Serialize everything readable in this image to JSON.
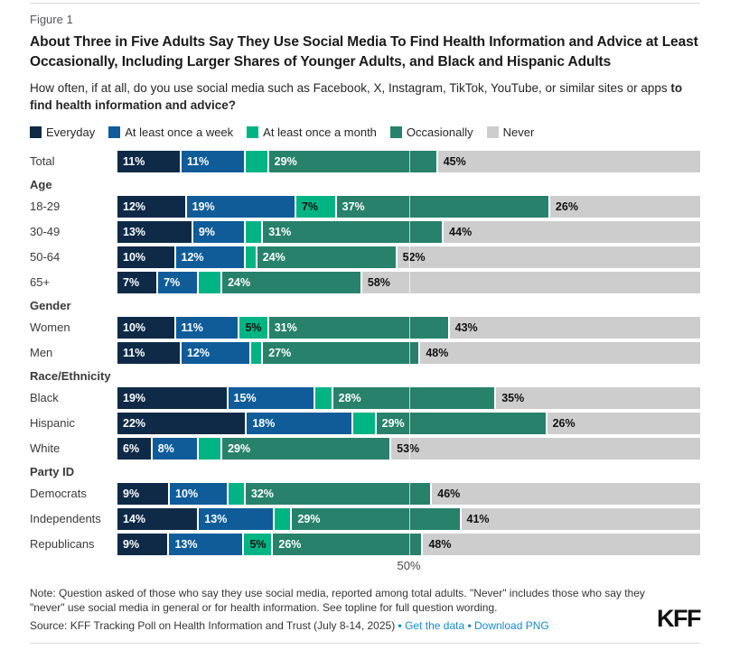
{
  "figure_label": "Figure 1",
  "title": "About Three in Five Adults Say They Use Social Media To Find Health Information and Advice at Least Occasionally, Including Larger Shares of Younger Adults, and Black and Hispanic Adults",
  "subtitle_regular": "How often, if at all, do you use social media such as Facebook, X, Instagram, TikTok, YouTube, or similar sites or apps ",
  "subtitle_bold": "to find health information and advice?",
  "legend": [
    {
      "label": "Everyday",
      "color": "#0e2a47"
    },
    {
      "label": "At least once a week",
      "color": "#0f5c99"
    },
    {
      "label": "At least once a month",
      "color": "#00b484"
    },
    {
      "label": "Occasionally",
      "color": "#27816b"
    },
    {
      "label": "Never",
      "color": "#cdcdcd"
    }
  ],
  "chart_data": {
    "type": "bar",
    "orientation": "horizontal-stacked",
    "series": [
      "Everyday",
      "At least once a week",
      "At least once a month",
      "Occasionally",
      "Never"
    ],
    "value_suffix": "%",
    "label_min_value": 5,
    "label_colors": [
      "#ffffff",
      "#ffffff",
      "#111111",
      "#ffffff",
      "#111111"
    ],
    "axis": {
      "range": [
        0,
        100
      ],
      "tick_value": 50,
      "tick_label": "50%",
      "gridline_at": 50
    },
    "rows": [
      {
        "type": "bar",
        "label": "Total",
        "values": [
          11,
          11,
          4,
          29,
          45
        ]
      },
      {
        "type": "header",
        "label": "Age"
      },
      {
        "type": "bar",
        "label": "18-29",
        "values": [
          12,
          19,
          7,
          37,
          26
        ]
      },
      {
        "type": "bar",
        "label": "30-49",
        "values": [
          13,
          9,
          3,
          31,
          44
        ]
      },
      {
        "type": "bar",
        "label": "50-64",
        "values": [
          10,
          12,
          2,
          24,
          52
        ]
      },
      {
        "type": "bar",
        "label": "65+",
        "values": [
          7,
          7,
          4,
          24,
          58
        ]
      },
      {
        "type": "header",
        "label": "Gender"
      },
      {
        "type": "bar",
        "label": "Women",
        "values": [
          10,
          11,
          5,
          31,
          43
        ]
      },
      {
        "type": "bar",
        "label": "Men",
        "values": [
          11,
          12,
          2,
          27,
          48
        ]
      },
      {
        "type": "header",
        "label": "Race/Ethnicity"
      },
      {
        "type": "bar",
        "label": "Black",
        "values": [
          19,
          15,
          3,
          28,
          35
        ]
      },
      {
        "type": "bar",
        "label": "Hispanic",
        "values": [
          22,
          18,
          4,
          29,
          26
        ]
      },
      {
        "type": "bar",
        "label": "White",
        "values": [
          6,
          8,
          4,
          29,
          53
        ]
      },
      {
        "type": "header",
        "label": "Party ID"
      },
      {
        "type": "bar",
        "label": "Democrats",
        "values": [
          9,
          10,
          3,
          32,
          46
        ]
      },
      {
        "type": "bar",
        "label": "Independents",
        "values": [
          14,
          13,
          3,
          29,
          41
        ]
      },
      {
        "type": "bar",
        "label": "Republicans",
        "values": [
          9,
          13,
          5,
          26,
          48
        ]
      }
    ]
  },
  "axis_label": "50%",
  "note": "Note: Question asked of those who say they use social media, reported among total adults. \"Never\" includes those who say they \"never\" use social media in general or for health information. See topline for full question wording.",
  "source_prefix": "Source: KFF Tracking Poll on Health Information and Trust (July 8-14, 2025)",
  "links": {
    "get_data": "Get the data",
    "download": "Download PNG"
  },
  "logo": "KFF"
}
